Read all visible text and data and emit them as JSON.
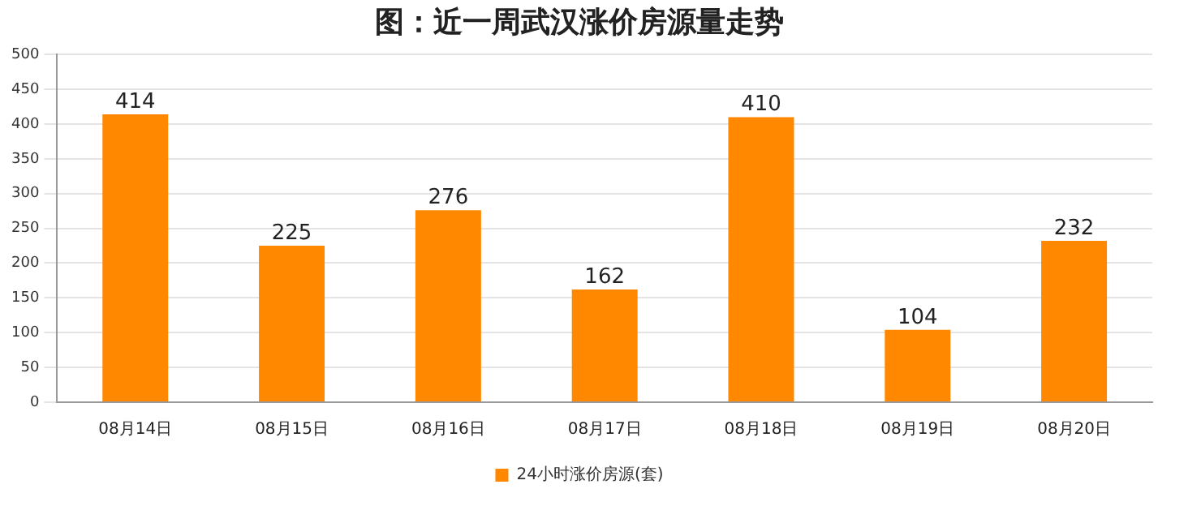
{
  "chart_data": {
    "type": "bar",
    "title": "图：近一周武汉涨价房源量走势",
    "categories": [
      "08月14日",
      "08月15日",
      "08月16日",
      "08月17日",
      "08月18日",
      "08月19日",
      "08月20日"
    ],
    "series": [
      {
        "name": "24小时涨价房源(套)",
        "color": "#ff8800",
        "values": [
          414,
          225,
          276,
          162,
          410,
          104,
          232
        ]
      }
    ],
    "ylim": [
      0,
      500
    ],
    "yticks": [
      0,
      50,
      100,
      150,
      200,
      250,
      300,
      350,
      400,
      450,
      500
    ],
    "grid": "y",
    "legend": "bottom",
    "data_labels": true
  }
}
